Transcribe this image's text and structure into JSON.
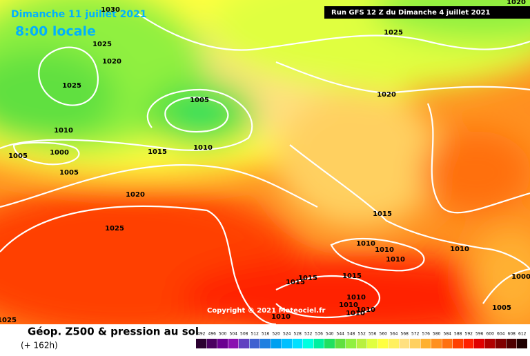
{
  "header": {
    "date": "Dimanche 11 juillet 2021",
    "time": "8:00 locale",
    "run": "Run GFS 12 Z du Dimanche 4 juillet 2021"
  },
  "copyright": "Copyright © 2021 Meteociel.fr",
  "footer": {
    "title": "Géop. Z500 & pression au sol",
    "lead": "(+ 162h)"
  },
  "isobar_labels": [
    1030,
    1025,
    1020,
    1025,
    1005,
    1010,
    1005,
    1000,
    1005,
    1015,
    1010,
    1020,
    1025,
    1025,
    1020,
    1015,
    1010,
    1010,
    1010,
    1010,
    1015,
    1015,
    1015,
    1010,
    1010,
    1010,
    1010,
    1010,
    1000,
    1005,
    1025,
    1020
  ],
  "legend": {
    "values": [
      492,
      496,
      500,
      504,
      508,
      512,
      516,
      520,
      524,
      528,
      532,
      536,
      540,
      544,
      548,
      552,
      556,
      560,
      564,
      568,
      572,
      576,
      580,
      584,
      588,
      592,
      596,
      600,
      604,
      608,
      612
    ],
    "colors": [
      "#2b0030",
      "#4a0060",
      "#6a0090",
      "#8a10b0",
      "#6040c0",
      "#4060d0",
      "#2080e0",
      "#00a0f0",
      "#00c0ff",
      "#00e0ff",
      "#00ffe0",
      "#00f0a0",
      "#20e060",
      "#60e040",
      "#90f040",
      "#b8f040",
      "#e0ff40",
      "#ffff40",
      "#fff060",
      "#ffe080",
      "#ffd060",
      "#ffb030",
      "#ff9020",
      "#ff7010",
      "#ff4000",
      "#ff2000",
      "#e00000",
      "#b00000",
      "#800000",
      "#500000",
      "#200000"
    ]
  }
}
